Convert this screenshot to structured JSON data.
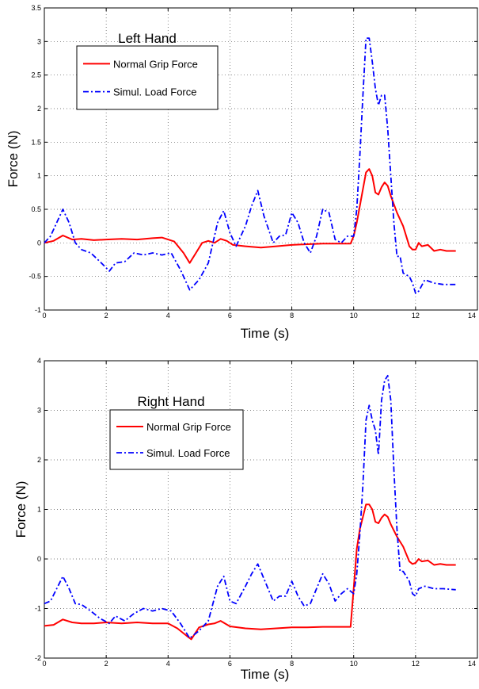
{
  "chart_data": [
    {
      "type": "line",
      "title": "Left Hand",
      "xlabel": "Time (s)",
      "ylabel": "Force (N)",
      "xlim": [
        0,
        14
      ],
      "ylim": [
        -1,
        3.5
      ],
      "xticks": [
        0,
        2,
        4,
        6,
        8,
        10,
        12,
        14
      ],
      "yticks": [
        -1,
        -0.5,
        0,
        0.5,
        1,
        1.5,
        2,
        2.5,
        3,
        3.5
      ],
      "xtick_labels": [
        "0",
        "2",
        "4",
        "6",
        "8",
        "10",
        "12",
        "14"
      ],
      "ytick_labels": [
        "-1",
        "-0.5",
        "0",
        "0.5",
        "1",
        "1.5",
        "2",
        "2.5",
        "3",
        "3.5"
      ],
      "grid": true,
      "legend": "upper-left",
      "series": [
        {
          "name": "Normal Grip Force",
          "color": "#ff0000",
          "style": "solid",
          "x": [
            0,
            0.3,
            0.6,
            0.9,
            1.2,
            1.6,
            2.0,
            2.5,
            3.0,
            3.5,
            3.8,
            4.2,
            4.5,
            4.7,
            4.9,
            5.1,
            5.3,
            5.5,
            5.7,
            5.9,
            6.1,
            6.5,
            7.0,
            7.5,
            8.0,
            8.5,
            9.0,
            9.5,
            9.9,
            10.0,
            10.1,
            10.2,
            10.3,
            10.4,
            10.5,
            10.6,
            10.7,
            10.8,
            10.9,
            11.0,
            11.1,
            11.2,
            11.4,
            11.6,
            11.8,
            11.9,
            12.0,
            12.1,
            12.2,
            12.4,
            12.6,
            12.8,
            13.0,
            13.3
          ],
          "y": [
            0,
            0.03,
            0.11,
            0.05,
            0.06,
            0.04,
            0.05,
            0.06,
            0.05,
            0.07,
            0.08,
            0.02,
            -0.15,
            -0.3,
            -0.15,
            0.0,
            0.03,
            0.0,
            0.06,
            0.03,
            -0.03,
            -0.05,
            -0.07,
            -0.05,
            -0.03,
            -0.02,
            -0.01,
            -0.01,
            -0.01,
            0.1,
            0.3,
            0.55,
            0.8,
            1.05,
            1.1,
            1.0,
            0.75,
            0.72,
            0.83,
            0.9,
            0.85,
            0.7,
            0.45,
            0.25,
            -0.05,
            -0.1,
            -0.1,
            0.0,
            -0.05,
            -0.03,
            -0.12,
            -0.1,
            -0.12,
            -0.12
          ]
        },
        {
          "name": "Simul. Load Force",
          "color": "#0000ff",
          "style": "dashdot",
          "x": [
            0,
            0.2,
            0.4,
            0.6,
            0.8,
            1.0,
            1.2,
            1.5,
            1.8,
            2.1,
            2.3,
            2.6,
            2.9,
            3.2,
            3.5,
            3.8,
            4.1,
            4.4,
            4.7,
            5.0,
            5.3,
            5.6,
            5.8,
            6.0,
            6.2,
            6.5,
            6.7,
            6.9,
            7.1,
            7.4,
            7.6,
            7.8,
            8.0,
            8.2,
            8.4,
            8.6,
            8.8,
            9.0,
            9.2,
            9.4,
            9.6,
            9.8,
            10.0,
            10.1,
            10.2,
            10.3,
            10.4,
            10.5,
            10.6,
            10.7,
            10.8,
            10.9,
            11.0,
            11.1,
            11.2,
            11.3,
            11.4,
            11.5,
            11.6,
            11.8,
            11.9,
            12.0,
            12.1,
            12.3,
            12.6,
            12.9,
            13.3
          ],
          "y": [
            0,
            0.1,
            0.3,
            0.5,
            0.3,
            0.0,
            -0.1,
            -0.15,
            -0.28,
            -0.42,
            -0.3,
            -0.28,
            -0.15,
            -0.18,
            -0.15,
            -0.18,
            -0.15,
            -0.4,
            -0.7,
            -0.55,
            -0.3,
            0.3,
            0.48,
            0.15,
            -0.05,
            0.25,
            0.55,
            0.78,
            0.4,
            0.0,
            0.1,
            0.12,
            0.45,
            0.3,
            0.0,
            -0.15,
            0.1,
            0.5,
            0.45,
            0.05,
            0.0,
            0.1,
            0.1,
            0.5,
            1.3,
            2.2,
            3.05,
            3.05,
            2.7,
            2.3,
            2.05,
            2.2,
            2.2,
            1.7,
            1.0,
            0.3,
            -0.2,
            -0.2,
            -0.45,
            -0.5,
            -0.6,
            -0.75,
            -0.72,
            -0.55,
            -0.6,
            -0.62,
            -0.62
          ]
        }
      ]
    },
    {
      "type": "line",
      "title": "Right Hand",
      "xlabel": "Time (s)",
      "ylabel": "Force (N)",
      "xlim": [
        0,
        14
      ],
      "ylim": [
        -2,
        4
      ],
      "xticks": [
        0,
        2,
        4,
        6,
        8,
        10,
        12,
        14
      ],
      "yticks": [
        -2,
        -1,
        0,
        1,
        2,
        3,
        4
      ],
      "xtick_labels": [
        "0",
        "2",
        "4",
        "6",
        "8",
        "10",
        "12",
        "14"
      ],
      "ytick_labels": [
        "-2",
        "-1",
        "0",
        "1",
        "2",
        "3",
        "4"
      ],
      "grid": true,
      "legend": "upper-left",
      "series": [
        {
          "name": "Normal Grip Force",
          "color": "#ff0000",
          "style": "solid",
          "x": [
            0,
            0.3,
            0.6,
            0.9,
            1.2,
            1.6,
            2.0,
            2.5,
            3.0,
            3.5,
            4.0,
            4.3,
            4.6,
            4.75,
            5.0,
            5.3,
            5.5,
            5.7,
            6.0,
            6.5,
            7.0,
            7.5,
            8.0,
            8.5,
            9.0,
            9.5,
            9.9,
            10.0,
            10.1,
            10.2,
            10.3,
            10.4,
            10.5,
            10.6,
            10.7,
            10.8,
            10.9,
            11.0,
            11.1,
            11.2,
            11.4,
            11.6,
            11.8,
            11.9,
            12.0,
            12.1,
            12.2,
            12.4,
            12.6,
            12.8,
            13.0,
            13.3
          ],
          "y": [
            -1.35,
            -1.33,
            -1.22,
            -1.28,
            -1.3,
            -1.3,
            -1.28,
            -1.3,
            -1.28,
            -1.3,
            -1.3,
            -1.4,
            -1.55,
            -1.62,
            -1.38,
            -1.32,
            -1.3,
            -1.25,
            -1.36,
            -1.4,
            -1.42,
            -1.4,
            -1.38,
            -1.38,
            -1.37,
            -1.37,
            -1.37,
            -0.6,
            0.2,
            0.6,
            0.85,
            1.1,
            1.1,
            1.0,
            0.75,
            0.72,
            0.83,
            0.9,
            0.85,
            0.7,
            0.45,
            0.25,
            -0.05,
            -0.1,
            -0.08,
            0.0,
            -0.05,
            -0.03,
            -0.12,
            -0.1,
            -0.12,
            -0.12
          ]
        },
        {
          "name": "Simul. Load Force",
          "color": "#0000ff",
          "style": "dashdot",
          "x": [
            0,
            0.2,
            0.4,
            0.6,
            0.8,
            1.0,
            1.2,
            1.5,
            1.8,
            2.1,
            2.3,
            2.6,
            2.9,
            3.2,
            3.5,
            3.8,
            4.1,
            4.4,
            4.7,
            5.0,
            5.3,
            5.6,
            5.8,
            6.0,
            6.2,
            6.5,
            6.7,
            6.9,
            7.1,
            7.4,
            7.6,
            7.8,
            8.0,
            8.2,
            8.4,
            8.6,
            8.8,
            9.0,
            9.2,
            9.4,
            9.6,
            9.8,
            10.0,
            10.1,
            10.2,
            10.3,
            10.4,
            10.5,
            10.6,
            10.7,
            10.8,
            10.9,
            11.0,
            11.1,
            11.2,
            11.3,
            11.4,
            11.5,
            11.6,
            11.8,
            11.9,
            12.0,
            12.1,
            12.3,
            12.6,
            12.9,
            13.3
          ],
          "y": [
            -0.9,
            -0.85,
            -0.6,
            -0.35,
            -0.6,
            -0.9,
            -0.92,
            -1.05,
            -1.2,
            -1.3,
            -1.15,
            -1.25,
            -1.1,
            -1.0,
            -1.05,
            -1.0,
            -1.05,
            -1.3,
            -1.6,
            -1.45,
            -1.25,
            -0.55,
            -0.35,
            -0.85,
            -0.9,
            -0.55,
            -0.3,
            -0.1,
            -0.4,
            -0.85,
            -0.75,
            -0.75,
            -0.45,
            -0.75,
            -0.95,
            -0.9,
            -0.6,
            -0.3,
            -0.5,
            -0.85,
            -0.7,
            -0.6,
            -0.7,
            -0.3,
            0.5,
            1.5,
            2.8,
            3.1,
            2.8,
            2.6,
            2.1,
            3.2,
            3.6,
            3.7,
            3.2,
            1.8,
            0.6,
            -0.25,
            -0.25,
            -0.45,
            -0.7,
            -0.75,
            -0.6,
            -0.55,
            -0.6,
            -0.6,
            -0.62
          ]
        }
      ]
    }
  ]
}
